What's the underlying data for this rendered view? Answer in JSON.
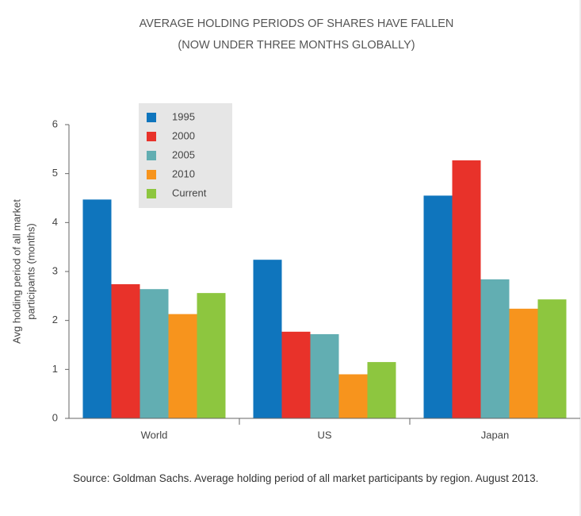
{
  "chart_data": {
    "type": "bar",
    "title": [
      "AVERAGE HOLDING PERIODS OF SHARES HAVE FALLEN",
      "(NOW UNDER THREE MONTHS GLOBALLY)"
    ],
    "y_label": [
      "Avg holding period of all market",
      "participants (months)"
    ],
    "categories": [
      "World",
      "US",
      "Japan"
    ],
    "series": [
      {
        "name": "1995",
        "color": "#0f75bd",
        "values": [
          4.47,
          3.24,
          4.55
        ]
      },
      {
        "name": "2000",
        "color": "#e8322a",
        "values": [
          2.74,
          1.77,
          5.27
        ]
      },
      {
        "name": "2005",
        "color": "#62aeb2",
        "values": [
          2.64,
          1.72,
          2.84
        ]
      },
      {
        "name": "2010",
        "color": "#f7941d",
        "values": [
          2.13,
          0.9,
          2.24
        ]
      },
      {
        "name": "Current",
        "color": "#8dc63f",
        "values": [
          2.56,
          1.15,
          2.43
        ]
      }
    ],
    "ylim": [
      0,
      6
    ],
    "yticks": [
      0,
      1,
      2,
      3,
      4,
      5,
      6
    ],
    "legend": "upper left",
    "note": "Source: Goldman Sachs. Average holding period of all market participants by region. August 2013."
  }
}
